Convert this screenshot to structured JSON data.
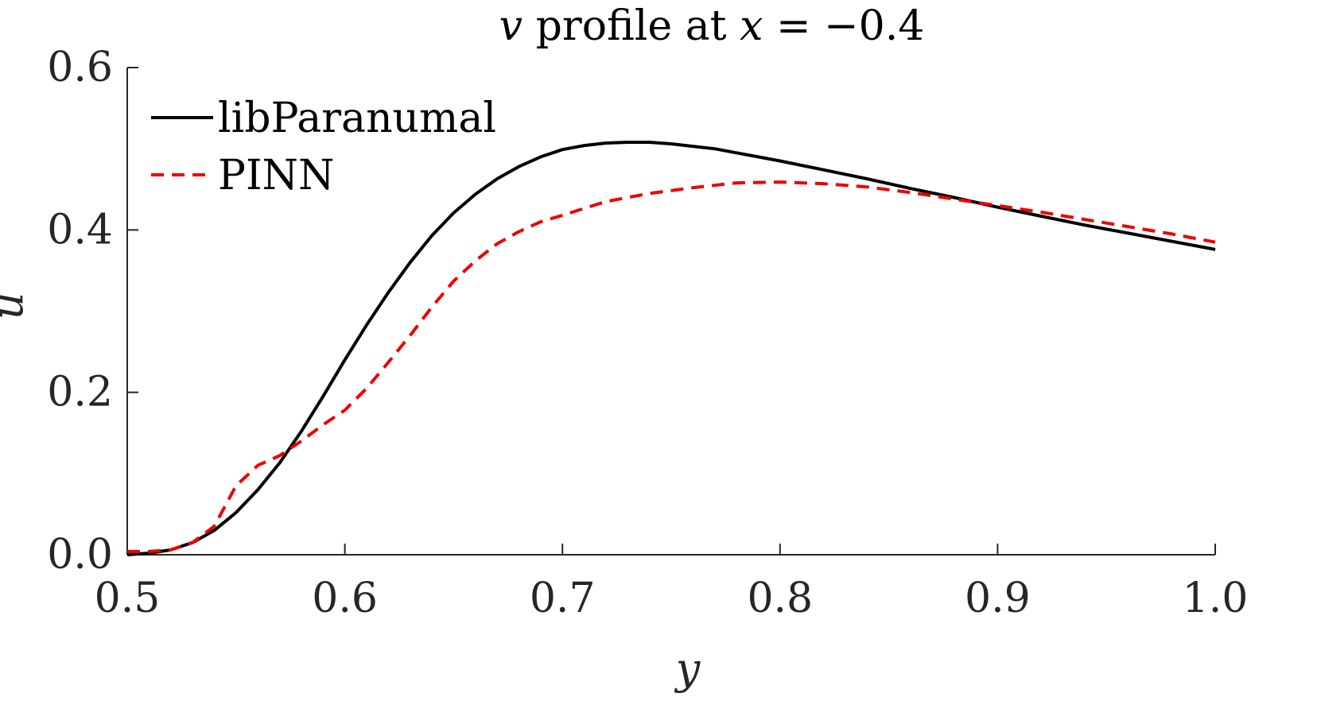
{
  "chart_data": {
    "type": "line",
    "title": {
      "var": "v",
      "mid": " profile at ",
      "var2": "x",
      "rest": " = −0.4"
    },
    "xlabel": "y",
    "ylabel": "u",
    "xlim": [
      0.5,
      1.0
    ],
    "ylim": [
      0.0,
      0.6
    ],
    "xticks": [
      0.5,
      0.6,
      0.7,
      0.8,
      0.9,
      1.0
    ],
    "xtick_labels": [
      "0.5",
      "0.6",
      "0.7",
      "0.8",
      "0.9",
      "1.0"
    ],
    "yticks": [
      0.0,
      0.2,
      0.4,
      0.6
    ],
    "ytick_labels": [
      "0.0",
      "0.2",
      "0.4",
      "0.6"
    ],
    "grid": false,
    "legend_position": "top-left",
    "series": [
      {
        "name": "libParanumal",
        "color": "#000000",
        "style": "solid",
        "x": [
          0.5,
          0.51,
          0.52,
          0.53,
          0.54,
          0.55,
          0.56,
          0.57,
          0.58,
          0.59,
          0.6,
          0.61,
          0.62,
          0.63,
          0.64,
          0.65,
          0.66,
          0.67,
          0.68,
          0.69,
          0.7,
          0.71,
          0.72,
          0.73,
          0.74,
          0.75,
          0.76,
          0.77,
          0.78,
          0.79,
          0.8,
          0.82,
          0.84,
          0.86,
          0.88,
          0.9,
          0.92,
          0.94,
          0.96,
          0.98,
          1.0
        ],
        "y": [
          0.0,
          0.002,
          0.006,
          0.015,
          0.03,
          0.052,
          0.08,
          0.113,
          0.152,
          0.195,
          0.24,
          0.283,
          0.323,
          0.36,
          0.393,
          0.421,
          0.444,
          0.463,
          0.478,
          0.49,
          0.499,
          0.504,
          0.507,
          0.508,
          0.508,
          0.506,
          0.503,
          0.5,
          0.495,
          0.49,
          0.485,
          0.474,
          0.463,
          0.451,
          0.44,
          0.428,
          0.417,
          0.406,
          0.396,
          0.386,
          0.376
        ]
      },
      {
        "name": "PINN",
        "color": "#ee0000",
        "style": "dashed",
        "x": [
          0.5,
          0.51,
          0.52,
          0.53,
          0.54,
          0.545,
          0.55,
          0.56,
          0.57,
          0.58,
          0.59,
          0.6,
          0.61,
          0.62,
          0.63,
          0.64,
          0.65,
          0.66,
          0.67,
          0.68,
          0.69,
          0.7,
          0.72,
          0.74,
          0.76,
          0.78,
          0.8,
          0.82,
          0.84,
          0.86,
          0.88,
          0.9,
          0.92,
          0.94,
          0.96,
          0.98,
          1.0
        ],
        "y": [
          0.004,
          0.004,
          0.006,
          0.015,
          0.035,
          0.06,
          0.085,
          0.11,
          0.122,
          0.14,
          0.16,
          0.178,
          0.205,
          0.237,
          0.27,
          0.305,
          0.337,
          0.362,
          0.383,
          0.398,
          0.41,
          0.418,
          0.435,
          0.445,
          0.452,
          0.458,
          0.459,
          0.457,
          0.453,
          0.446,
          0.438,
          0.43,
          0.422,
          0.413,
          0.404,
          0.395,
          0.385
        ]
      }
    ]
  }
}
